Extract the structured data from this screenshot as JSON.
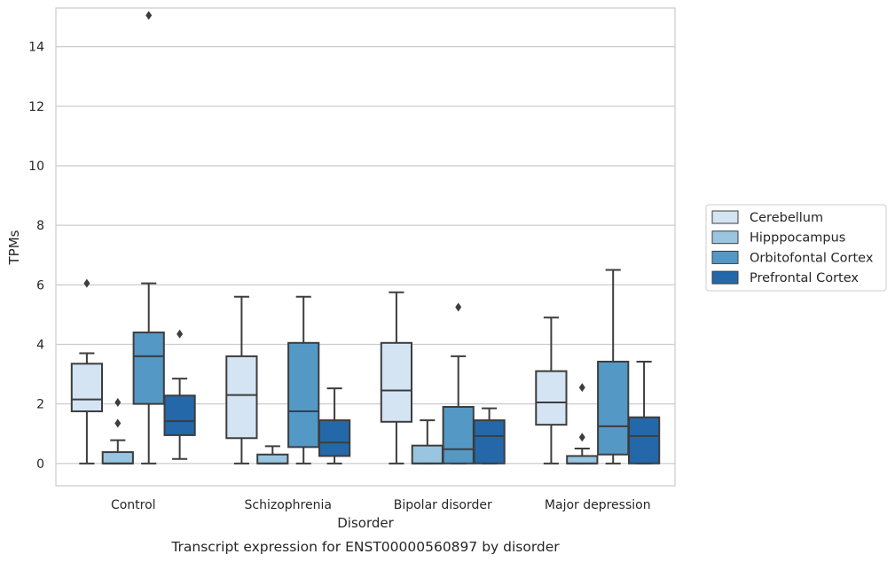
{
  "chart_data": {
    "type": "box",
    "xlabel": "Disorder",
    "ylabel": "TPMs",
    "caption": "Transcript expression for ENST00000560897 by disorder",
    "ylim": [
      -0.75,
      15.3
    ],
    "yticks": [
      0,
      2,
      4,
      6,
      8,
      10,
      12,
      14
    ],
    "grid": "horizontal",
    "legend_position": "right",
    "categories": [
      "Control",
      "Schizophrenia",
      "Bipolar disorder",
      "Major depression"
    ],
    "series": [
      {
        "name": "Cerebellum",
        "color": "#d4e4f3",
        "boxes": [
          {
            "whisker_low": 0,
            "q1": 1.75,
            "median": 2.15,
            "q3": 3.35,
            "whisker_high": 3.7,
            "outliers": [
              6.05
            ]
          },
          {
            "whisker_low": 0,
            "q1": 0.85,
            "median": 2.3,
            "q3": 3.6,
            "whisker_high": 5.6,
            "outliers": []
          },
          {
            "whisker_low": 0,
            "q1": 1.4,
            "median": 2.45,
            "q3": 4.05,
            "whisker_high": 5.75,
            "outliers": []
          },
          {
            "whisker_low": 0,
            "q1": 1.3,
            "median": 2.05,
            "q3": 3.1,
            "whisker_high": 4.9,
            "outliers": []
          }
        ]
      },
      {
        "name": "Hipppocampus",
        "color": "#9ac5e1",
        "boxes": [
          {
            "whisker_low": 0,
            "q1": 0,
            "median": 0,
            "q3": 0.38,
            "whisker_high": 0.78,
            "outliers": [
              1.35,
              2.05
            ]
          },
          {
            "whisker_low": 0,
            "q1": 0,
            "median": 0,
            "q3": 0.3,
            "whisker_high": 0.58,
            "outliers": []
          },
          {
            "whisker_low": 0,
            "q1": 0,
            "median": 0,
            "q3": 0.6,
            "whisker_high": 1.45,
            "outliers": []
          },
          {
            "whisker_low": 0,
            "q1": 0,
            "median": 0,
            "q3": 0.25,
            "whisker_high": 0.5,
            "outliers": [
              0.88,
              2.55
            ]
          }
        ]
      },
      {
        "name": "Orbitofontal Cortex",
        "color": "#5498c6",
        "boxes": [
          {
            "whisker_low": 0,
            "q1": 2.0,
            "median": 3.6,
            "q3": 4.4,
            "whisker_high": 6.05,
            "outliers": [
              15.05
            ]
          },
          {
            "whisker_low": 0,
            "q1": 0.55,
            "median": 1.75,
            "q3": 4.05,
            "whisker_high": 5.6,
            "outliers": []
          },
          {
            "whisker_low": 0,
            "q1": 0,
            "median": 0.48,
            "q3": 1.9,
            "whisker_high": 3.6,
            "outliers": [
              5.25
            ]
          },
          {
            "whisker_low": 0,
            "q1": 0.3,
            "median": 1.25,
            "q3": 3.42,
            "whisker_high": 6.5,
            "outliers": []
          }
        ]
      },
      {
        "name": "Prefrontal Cortex",
        "color": "#2468a9",
        "boxes": [
          {
            "whisker_low": 0.15,
            "q1": 0.95,
            "median": 1.42,
            "q3": 2.28,
            "whisker_high": 2.85,
            "outliers": [
              4.35
            ]
          },
          {
            "whisker_low": 0,
            "q1": 0.25,
            "median": 0.7,
            "q3": 1.45,
            "whisker_high": 2.52,
            "outliers": []
          },
          {
            "whisker_low": 0,
            "q1": 0,
            "median": 0.92,
            "q3": 1.45,
            "whisker_high": 1.85,
            "outliers": []
          },
          {
            "whisker_low": 0,
            "q1": 0,
            "median": 0.92,
            "q3": 1.55,
            "whisker_high": 3.42,
            "outliers": []
          }
        ]
      }
    ]
  }
}
